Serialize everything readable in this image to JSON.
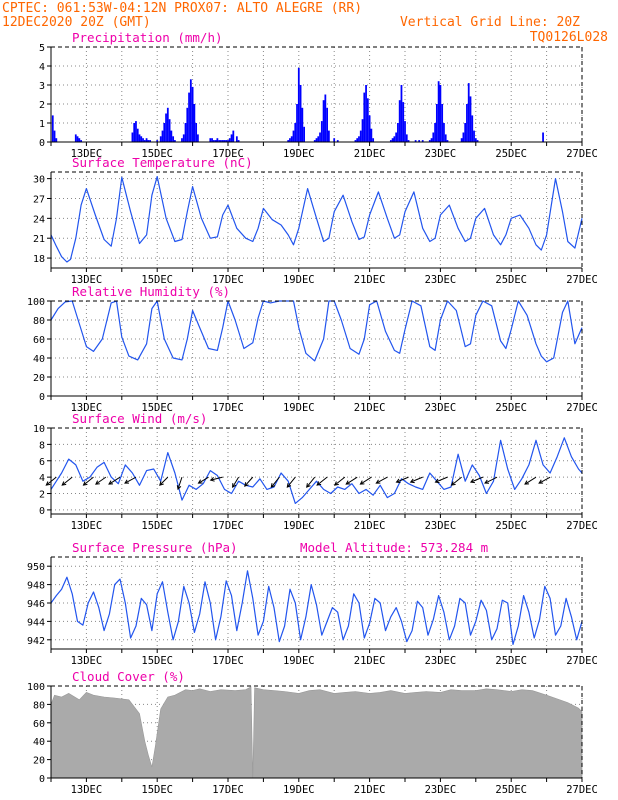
{
  "header": {
    "line1": "CPTEC:   061:53W-04:12N   PROX07: ALTO ALEGRE (RR)",
    "line2": "12DEC2020 20Z (GMT)",
    "grid_note": "Vertical Grid Line: 20Z",
    "code": "TQ0126L028"
  },
  "x_tick_labels": [
    "13DEC",
    "15DEC",
    "17DEC",
    "19DEC",
    "21DEC",
    "23DEC",
    "25DEC",
    "27DEC"
  ],
  "chart_data": [
    {
      "type": "bar",
      "title": "Precipitation (mm/h)",
      "x_unit": "days since 12DEC 20Z",
      "ylim": [
        0,
        5
      ],
      "yticks": [
        0,
        1,
        2,
        3,
        4,
        5
      ],
      "color": "#0000ff",
      "x": [
        0.05,
        0.1,
        0.15,
        0.7,
        0.75,
        0.8,
        0.85,
        2.3,
        2.35,
        2.4,
        2.45,
        2.5,
        2.55,
        2.6,
        2.65,
        2.7,
        2.75,
        2.8,
        3.0,
        3.1,
        3.15,
        3.2,
        3.25,
        3.3,
        3.35,
        3.4,
        3.45,
        3.5,
        3.7,
        3.75,
        3.8,
        3.85,
        3.9,
        3.95,
        4.0,
        4.05,
        4.1,
        4.15,
        4.5,
        4.55,
        4.6,
        4.65,
        4.7,
        4.75,
        4.8,
        4.85,
        4.9,
        4.95,
        5.0,
        5.05,
        5.1,
        5.15,
        5.25,
        5.3,
        6.7,
        6.75,
        6.8,
        6.85,
        6.9,
        6.95,
        7.0,
        7.05,
        7.1,
        7.15,
        7.45,
        7.5,
        7.55,
        7.6,
        7.65,
        7.7,
        7.75,
        7.8,
        7.85,
        8.0,
        8.1,
        8.6,
        8.65,
        8.7,
        8.75,
        8.8,
        8.85,
        8.9,
        8.95,
        9.0,
        9.05,
        9.1,
        9.6,
        9.65,
        9.7,
        9.75,
        9.8,
        9.85,
        9.9,
        9.95,
        10.0,
        10.05,
        10.1,
        10.3,
        10.4,
        10.5,
        10.7,
        10.75,
        10.8,
        10.85,
        10.9,
        10.95,
        11.0,
        11.05,
        11.1,
        11.15,
        11.2,
        11.6,
        11.65,
        11.7,
        11.75,
        11.8,
        11.85,
        11.9,
        11.95,
        12.0,
        12.05,
        13.9
      ],
      "values": [
        1.4,
        0.6,
        0.2,
        0.4,
        0.3,
        0.2,
        0.1,
        0.5,
        1.0,
        1.1,
        0.7,
        0.4,
        0.3,
        0.2,
        0.1,
        0.2,
        0.1,
        0.1,
        0.1,
        0.3,
        0.6,
        1.0,
        1.5,
        1.8,
        1.2,
        0.6,
        0.3,
        0.1,
        0.2,
        0.4,
        1.0,
        1.8,
        2.6,
        3.3,
        2.9,
        2.0,
        1.0,
        0.4,
        0.2,
        0.2,
        0.1,
        0.1,
        0.2,
        0.1,
        0.1,
        0.1,
        0.1,
        0.1,
        0.1,
        0.2,
        0.4,
        0.6,
        0.3,
        0.1,
        0.1,
        0.2,
        0.3,
        0.6,
        1.0,
        2.0,
        3.9,
        3.0,
        1.8,
        0.8,
        0.1,
        0.2,
        0.3,
        0.5,
        1.1,
        2.2,
        2.5,
        1.8,
        0.6,
        0.2,
        0.1,
        0.1,
        0.2,
        0.3,
        0.6,
        1.2,
        2.6,
        3.0,
        2.3,
        1.4,
        0.7,
        0.2,
        0.1,
        0.2,
        0.3,
        0.5,
        1.0,
        2.2,
        3.0,
        2.1,
        1.1,
        0.4,
        0.1,
        0.1,
        0.1,
        0.1,
        0.1,
        0.2,
        0.5,
        1.0,
        2.0,
        3.2,
        3.0,
        2.0,
        1.0,
        0.4,
        0.1,
        0.2,
        0.5,
        1.0,
        2.0,
        3.1,
        2.4,
        1.4,
        0.6,
        0.2,
        0.1,
        0.5
      ]
    },
    {
      "type": "line",
      "title": "Surface Temperature (nC)",
      "x_unit": "days since 12DEC 20Z",
      "ylim": [
        16.5,
        31
      ],
      "yticks": [
        18,
        21,
        24,
        27,
        30
      ],
      "color": "#2255ee",
      "x": [
        0,
        0.15,
        0.3,
        0.45,
        0.55,
        0.7,
        0.85,
        1.0,
        1.25,
        1.5,
        1.7,
        1.85,
        2.0,
        2.25,
        2.5,
        2.7,
        2.85,
        3.0,
        3.25,
        3.5,
        3.7,
        3.85,
        4.0,
        4.25,
        4.5,
        4.7,
        4.85,
        5.0,
        5.25,
        5.5,
        5.7,
        5.85,
        6.0,
        6.25,
        6.5,
        6.7,
        6.85,
        7.0,
        7.25,
        7.5,
        7.7,
        7.85,
        8.0,
        8.25,
        8.5,
        8.7,
        8.85,
        9.0,
        9.25,
        9.5,
        9.7,
        9.85,
        10.0,
        10.25,
        10.5,
        10.7,
        10.85,
        11.0,
        11.25,
        11.5,
        11.7,
        11.85,
        12.0,
        12.25,
        12.5,
        12.7,
        12.85,
        13.0,
        13.25,
        13.5,
        13.7,
        13.85,
        14.0,
        14.25,
        14.45,
        14.6,
        14.8,
        15.0
      ],
      "values": [
        21.5,
        19.8,
        18.2,
        17.4,
        17.8,
        21.0,
        26.0,
        28.5,
        24.5,
        20.8,
        19.8,
        24.0,
        30.2,
        25.0,
        20.2,
        21.5,
        27.5,
        30.3,
        24.0,
        20.5,
        20.8,
        25.0,
        28.8,
        24.0,
        21.0,
        21.2,
        24.5,
        26.0,
        22.5,
        21.0,
        20.5,
        22.5,
        25.5,
        23.8,
        23.0,
        21.5,
        20.0,
        22.5,
        28.5,
        24.0,
        20.5,
        21.0,
        25.0,
        27.5,
        23.5,
        20.8,
        21.2,
        24.5,
        28.0,
        24.0,
        21.0,
        21.5,
        25.0,
        28.0,
        22.5,
        20.5,
        21.0,
        24.5,
        26.0,
        22.5,
        20.5,
        21.0,
        24.0,
        25.5,
        21.5,
        20.0,
        21.5,
        24.0,
        24.5,
        22.5,
        20.0,
        19.2,
        21.5,
        30.0,
        25.0,
        20.5,
        19.5,
        24.0
      ]
    },
    {
      "type": "line",
      "title": "Relative Humidity (%)",
      "x_unit": "days since 12DEC 20Z",
      "ylim": [
        0,
        100
      ],
      "yticks": [
        0,
        20,
        40,
        60,
        80,
        100
      ],
      "color": "#2255ee",
      "x": [
        0,
        0.2,
        0.4,
        0.6,
        0.85,
        1.0,
        1.2,
        1.45,
        1.7,
        1.85,
        2.0,
        2.2,
        2.45,
        2.7,
        2.85,
        3.0,
        3.2,
        3.45,
        3.7,
        3.85,
        4.0,
        4.2,
        4.45,
        4.7,
        4.85,
        5.0,
        5.2,
        5.45,
        5.7,
        5.85,
        6.0,
        6.2,
        6.45,
        6.7,
        6.85,
        7.0,
        7.2,
        7.45,
        7.7,
        7.85,
        8.0,
        8.2,
        8.45,
        8.7,
        8.85,
        9.0,
        9.2,
        9.45,
        9.7,
        9.85,
        10.0,
        10.2,
        10.45,
        10.7,
        10.85,
        11.0,
        11.2,
        11.45,
        11.7,
        11.85,
        12.0,
        12.2,
        12.45,
        12.7,
        12.85,
        13.0,
        13.2,
        13.45,
        13.7,
        13.85,
        14.0,
        14.2,
        14.45,
        14.6,
        14.8,
        15.0
      ],
      "values": [
        80,
        92,
        99,
        100,
        70,
        52,
        47,
        60,
        98,
        100,
        62,
        42,
        38,
        55,
        92,
        100,
        60,
        40,
        38,
        60,
        90,
        72,
        50,
        48,
        72,
        100,
        80,
        50,
        56,
        82,
        100,
        98,
        100,
        100,
        100,
        72,
        45,
        37,
        60,
        100,
        100,
        80,
        50,
        44,
        60,
        96,
        100,
        68,
        48,
        45,
        70,
        100,
        95,
        52,
        48,
        80,
        100,
        90,
        52,
        55,
        85,
        100,
        95,
        58,
        50,
        70,
        100,
        85,
        55,
        42,
        36,
        40,
        88,
        100,
        55,
        72
      ]
    },
    {
      "type": "line",
      "title": "Surface Wind (m/s)",
      "x_unit": "days since 12DEC 20Z",
      "ylim": [
        -0.5,
        10
      ],
      "yticks": [
        0,
        2,
        4,
        6,
        8,
        10
      ],
      "color": "#2255ee",
      "x": [
        0,
        0.15,
        0.3,
        0.5,
        0.7,
        0.9,
        1.1,
        1.3,
        1.5,
        1.7,
        1.9,
        2.1,
        2.3,
        2.5,
        2.7,
        2.9,
        3.1,
        3.3,
        3.5,
        3.7,
        3.9,
        4.1,
        4.3,
        4.5,
        4.7,
        4.9,
        5.1,
        5.3,
        5.5,
        5.7,
        5.9,
        6.1,
        6.3,
        6.5,
        6.7,
        6.9,
        7.1,
        7.3,
        7.5,
        7.7,
        7.9,
        8.1,
        8.3,
        8.5,
        8.7,
        8.9,
        9.1,
        9.3,
        9.5,
        9.7,
        9.9,
        10.1,
        10.3,
        10.5,
        10.7,
        10.9,
        11.1,
        11.3,
        11.5,
        11.7,
        11.9,
        12.1,
        12.3,
        12.5,
        12.7,
        12.9,
        13.1,
        13.3,
        13.5,
        13.7,
        13.9,
        14.1,
        14.3,
        14.5,
        14.7,
        14.9,
        15.0
      ],
      "values": [
        2.5,
        3.5,
        4.5,
        6.2,
        5.5,
        3.5,
        4.0,
        5.2,
        5.8,
        4.0,
        3.2,
        5.5,
        4.5,
        3.0,
        4.8,
        5.0,
        3.5,
        7.0,
        4.5,
        1.2,
        3.0,
        2.5,
        3.2,
        4.8,
        4.2,
        2.5,
        2.0,
        3.5,
        3.0,
        2.8,
        3.8,
        2.5,
        2.8,
        4.5,
        3.5,
        0.8,
        1.5,
        2.5,
        3.5,
        2.5,
        2.0,
        2.8,
        2.5,
        3.2,
        2.0,
        2.5,
        1.8,
        3.0,
        1.5,
        2.0,
        3.8,
        3.2,
        2.8,
        2.5,
        4.5,
        3.5,
        2.5,
        2.8,
        6.8,
        3.5,
        5.5,
        4.2,
        2.0,
        3.5,
        8.5,
        5.0,
        2.5,
        3.8,
        5.5,
        8.5,
        5.5,
        4.5,
        6.5,
        8.8,
        6.5,
        5.0,
        4.5
      ],
      "arrows": [
        {
          "x": 0.15,
          "dx": -10,
          "dy": 8
        },
        {
          "x": 0.6,
          "dx": -10,
          "dy": 8
        },
        {
          "x": 1.2,
          "dx": -10,
          "dy": 8
        },
        {
          "x": 1.55,
          "dx": -10,
          "dy": 7
        },
        {
          "x": 1.95,
          "dx": -11,
          "dy": 7
        },
        {
          "x": 2.4,
          "dx": -11,
          "dy": 6
        },
        {
          "x": 3.3,
          "dx": -8,
          "dy": 8
        },
        {
          "x": 3.7,
          "dx": -4,
          "dy": 12
        },
        {
          "x": 4.45,
          "dx": -10,
          "dy": 6
        },
        {
          "x": 4.85,
          "dx": -12,
          "dy": 3
        },
        {
          "x": 5.3,
          "dx": -6,
          "dy": 10
        },
        {
          "x": 5.7,
          "dx": -8,
          "dy": 9
        },
        {
          "x": 6.45,
          "dx": -8,
          "dy": 10
        },
        {
          "x": 6.9,
          "dx": -8,
          "dy": 10
        },
        {
          "x": 7.45,
          "dx": -8,
          "dy": 10
        },
        {
          "x": 7.8,
          "dx": -10,
          "dy": 8
        },
        {
          "x": 8.3,
          "dx": -10,
          "dy": 8
        },
        {
          "x": 8.65,
          "dx": -11,
          "dy": 7
        },
        {
          "x": 9.05,
          "dx": -11,
          "dy": 7
        },
        {
          "x": 9.5,
          "dx": -11,
          "dy": 6
        },
        {
          "x": 10.1,
          "dx": -12,
          "dy": 5
        },
        {
          "x": 10.5,
          "dx": -12,
          "dy": 5
        },
        {
          "x": 11.2,
          "dx": -12,
          "dy": 5
        },
        {
          "x": 11.6,
          "dx": -10,
          "dy": 8
        },
        {
          "x": 12.2,
          "dx": -12,
          "dy": 5
        },
        {
          "x": 12.6,
          "dx": -12,
          "dy": 6
        },
        {
          "x": 13.7,
          "dx": -11,
          "dy": 7
        },
        {
          "x": 14.1,
          "dx": -11,
          "dy": 6
        }
      ]
    },
    {
      "type": "line",
      "title": "Surface Pressure (hPa)",
      "annotation": "Model Altitude: 573.284 m",
      "x_unit": "days since 12DEC 20Z",
      "ylim": [
        941,
        951
      ],
      "yticks": [
        942,
        944,
        946,
        948,
        950
      ],
      "color": "#2255ee",
      "x": [
        0,
        0.15,
        0.3,
        0.45,
        0.6,
        0.75,
        0.9,
        1.05,
        1.2,
        1.35,
        1.5,
        1.65,
        1.8,
        1.95,
        2.1,
        2.25,
        2.4,
        2.55,
        2.7,
        2.85,
        3.0,
        3.15,
        3.3,
        3.45,
        3.6,
        3.75,
        3.9,
        4.05,
        4.2,
        4.35,
        4.5,
        4.65,
        4.8,
        4.95,
        5.1,
        5.25,
        5.4,
        5.55,
        5.7,
        5.85,
        6.0,
        6.15,
        6.3,
        6.45,
        6.6,
        6.75,
        6.9,
        7.05,
        7.2,
        7.35,
        7.5,
        7.65,
        7.8,
        7.95,
        8.1,
        8.25,
        8.4,
        8.55,
        8.7,
        8.85,
        9.0,
        9.15,
        9.3,
        9.45,
        9.6,
        9.75,
        9.9,
        10.05,
        10.2,
        10.35,
        10.5,
        10.65,
        10.8,
        10.95,
        11.1,
        11.25,
        11.4,
        11.55,
        11.7,
        11.85,
        12.0,
        12.15,
        12.3,
        12.45,
        12.6,
        12.75,
        12.9,
        13.05,
        13.2,
        13.35,
        13.5,
        13.65,
        13.8,
        13.95,
        14.1,
        14.25,
        14.4,
        14.55,
        14.7,
        14.85,
        15.0
      ],
      "values": [
        946,
        946.8,
        947.5,
        948.8,
        947.0,
        944.0,
        943.6,
        946.0,
        947.2,
        945.5,
        943.0,
        944.8,
        948.0,
        948.6,
        946.0,
        942.2,
        943.5,
        946.5,
        945.8,
        943.0,
        947.0,
        948.3,
        945.0,
        942.0,
        944.0,
        947.8,
        946.0,
        942.8,
        944.8,
        948.3,
        946.0,
        942.0,
        944.5,
        948.4,
        946.8,
        943.0,
        946.0,
        949.5,
        946.5,
        942.5,
        944.0,
        947.8,
        945.5,
        941.8,
        943.5,
        947.5,
        946.0,
        942.0,
        944.5,
        948.0,
        945.8,
        942.5,
        944.0,
        945.5,
        945.0,
        942.0,
        943.5,
        947.0,
        946.0,
        942.2,
        943.8,
        946.5,
        946.0,
        943.0,
        944.5,
        945.5,
        944.0,
        941.8,
        943.0,
        946.2,
        945.5,
        942.5,
        944.2,
        946.8,
        945.0,
        942.0,
        943.5,
        946.5,
        946.0,
        942.5,
        944.0,
        946.3,
        945.2,
        942.0,
        943.2,
        946.3,
        946.0,
        941.5,
        943.5,
        946.8,
        945.0,
        942.2,
        944.2,
        947.8,
        946.5,
        942.5,
        943.5,
        946.5,
        944.5,
        942.0,
        944.0
      ]
    },
    {
      "type": "area",
      "title": "Cloud Cover (%)",
      "x_unit": "days since 12DEC 20Z",
      "ylim": [
        0,
        100
      ],
      "yticks": [
        0,
        20,
        40,
        60,
        80,
        100
      ],
      "color": "#aaaaaa",
      "x": [
        0,
        0.1,
        0.3,
        0.5,
        0.8,
        1.0,
        1.2,
        1.5,
        1.8,
        2.0,
        2.2,
        2.5,
        2.65,
        2.75,
        2.85,
        2.95,
        3.1,
        3.3,
        3.5,
        3.8,
        4.0,
        4.2,
        4.5,
        4.8,
        5.2,
        5.5,
        5.65,
        5.7,
        5.75,
        6.0,
        6.3,
        6.6,
        7.0,
        7.3,
        7.6,
        8.0,
        8.3,
        8.6,
        9.0,
        9.3,
        9.6,
        10.0,
        10.3,
        10.6,
        11.0,
        11.3,
        11.6,
        12.0,
        12.3,
        12.6,
        13.0,
        13.3,
        13.6,
        14.0,
        14.3,
        14.6,
        14.9,
        15.0
      ],
      "values": [
        80,
        90,
        88,
        92,
        85,
        93,
        90,
        88,
        87,
        86,
        85,
        70,
        40,
        25,
        12,
        35,
        75,
        88,
        90,
        96,
        95,
        97,
        94,
        96,
        95,
        96,
        99,
        0,
        98,
        96,
        95,
        94,
        92,
        95,
        96,
        92,
        93,
        94,
        92,
        93,
        95,
        92,
        93,
        94,
        93,
        96,
        95,
        95,
        97,
        96,
        94,
        96,
        95,
        90,
        86,
        82,
        76,
        72
      ]
    }
  ]
}
